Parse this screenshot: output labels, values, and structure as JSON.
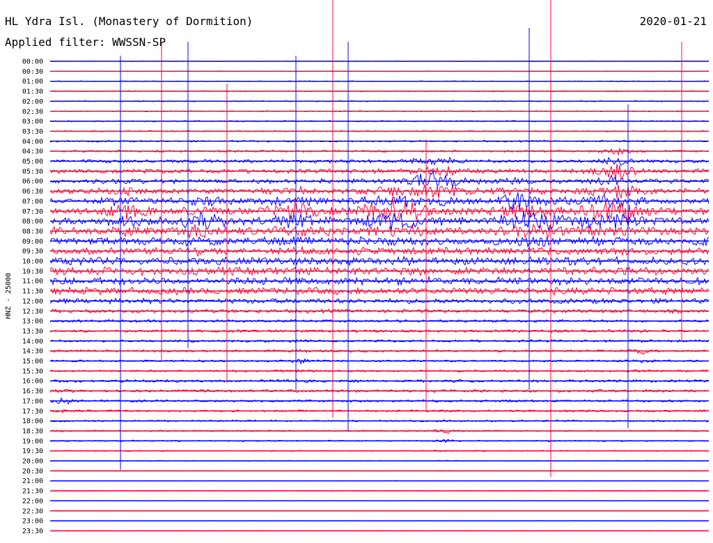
{
  "station": "HL Ydra Isl. (Monastery of Dormition)",
  "date": "2020-01-21",
  "filter": "Applied filter: WWSSN-SP",
  "side_label": "HNZ - 25000",
  "chart_data": {
    "type": "line",
    "title": "HL Ydra Isl. (Monastery of Dormition)",
    "xlabel": "",
    "ylabel": "HNZ - 25000",
    "row_labels": [
      "00:00",
      "00:30",
      "01:00",
      "01:30",
      "02:00",
      "02:30",
      "03:00",
      "03:30",
      "04:00",
      "04:30",
      "05:00",
      "05:30",
      "06:00",
      "06:30",
      "07:00",
      "07:30",
      "08:00",
      "08:30",
      "09:00",
      "09:30",
      "10:00",
      "10:30",
      "11:00",
      "11:30",
      "12:00",
      "12:30",
      "13:00",
      "13:30",
      "14:00",
      "14:30",
      "15:00",
      "15:30",
      "16:00",
      "16:30",
      "17:00",
      "17:30",
      "18:00",
      "18:30",
      "19:00",
      "19:30",
      "20:00",
      "20:30",
      "21:00",
      "21:30",
      "22:00",
      "22:30",
      "23:00",
      "23:30"
    ],
    "series_colors": [
      "#0000ff",
      "#ff0033"
    ],
    "noise_levels": [
      0.3,
      0.4,
      0.5,
      0.6,
      0.6,
      0.7,
      0.7,
      0.7,
      1.0,
      1.2,
      2.0,
      2.6,
      2.8,
      3.2,
      3.6,
      4.0,
      4.4,
      4.6,
      4.4,
      4.0,
      4.6,
      4.6,
      4.4,
      4.2,
      3.0,
      2.2,
      1.6,
      1.6,
      1.4,
      1.4,
      1.2,
      1.2,
      1.6,
      1.6,
      1.4,
      1.2,
      1.0,
      0.8,
      0.8,
      0.6,
      0.4,
      0.4,
      0.3,
      0.3,
      0.2,
      0.2,
      0.2,
      0.2
    ],
    "bursts": [
      {
        "time": 0.11,
        "row": 15,
        "amplitude": 8,
        "width": 0.02
      },
      {
        "time": 0.23,
        "row": 16,
        "amplitude": 10,
        "width": 0.02
      },
      {
        "time": 0.37,
        "row": 15,
        "amplitude": 10,
        "width": 0.025
      },
      {
        "time": 0.52,
        "row": 15,
        "amplitude": 12,
        "width": 0.03
      },
      {
        "time": 0.59,
        "row": 12,
        "amplitude": 10,
        "width": 0.025
      },
      {
        "time": 0.7,
        "row": 14,
        "amplitude": 8,
        "width": 0.02
      },
      {
        "time": 0.74,
        "row": 16,
        "amplitude": 10,
        "width": 0.025
      },
      {
        "time": 0.85,
        "row": 15,
        "amplitude": 12,
        "width": 0.03
      },
      {
        "time": 0.86,
        "row": 11,
        "amplitude": 9,
        "width": 0.02
      },
      {
        "time": 1.04,
        "row": 18,
        "amplitude": 10,
        "width": 0.025
      },
      {
        "time": 1.12,
        "row": 16,
        "amplitude": 9,
        "width": 0.025
      },
      {
        "time": 0.38,
        "row": 30,
        "amplitude": 3,
        "width": 0.01
      },
      {
        "time": 0.02,
        "row": 34,
        "amplitude": 3,
        "width": 0.008
      },
      {
        "time": 0.6,
        "row": 37,
        "amplitude": 3,
        "width": 0.01
      },
      {
        "time": 0.9,
        "row": 29,
        "amplitude": 3,
        "width": 0.01
      }
    ]
  }
}
